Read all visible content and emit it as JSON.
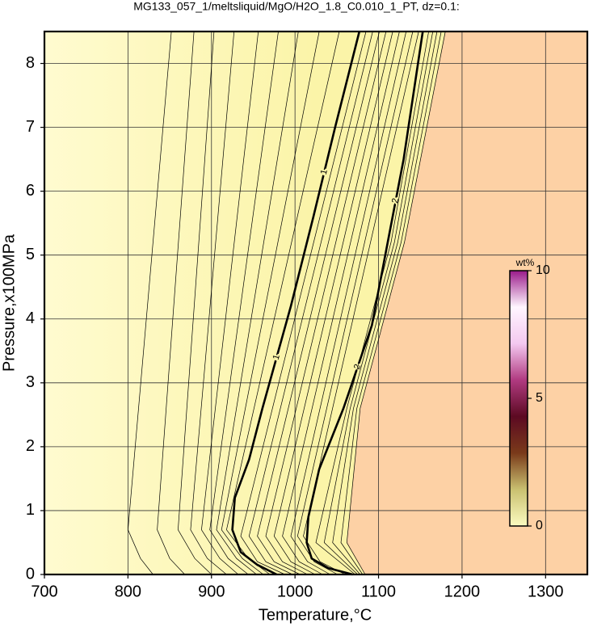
{
  "chart_data": {
    "type": "contour",
    "title": "MG133_057_1/meltsliquid/MgO/H2O_1.8_C0.010_1_PT, dz=0.1:",
    "xlabel": "Temperature,°C",
    "ylabel": "Pressure,x100MPa",
    "xlim": [
      700,
      1350
    ],
    "ylim": [
      0,
      8.5
    ],
    "xticks": [
      700,
      800,
      900,
      1000,
      1100,
      1200,
      1300
    ],
    "yticks": [
      0,
      1,
      2,
      3,
      4,
      5,
      6,
      7,
      8
    ],
    "grid": true,
    "low_color": "#fbf4a8",
    "high_color": "#fdd1a5",
    "colorbar": {
      "label": "wt%",
      "lim": [
        0,
        10
      ],
      "ticks": [
        0,
        5,
        10
      ],
      "colors": [
        "#fbfbc0",
        "#c9c070",
        "#7a3a1a",
        "#5c0a22",
        "#b03a80",
        "#f4c8f0",
        "#fff6ff",
        "#9a1a8a"
      ]
    },
    "contours": [
      {
        "level": 0.1,
        "x": [
          830,
          815,
          800,
          852
        ],
        "y": [
          0,
          0.25,
          0.7,
          8.5
        ]
      },
      {
        "level": 0.2,
        "x": [
          868,
          850,
          835,
          879
        ],
        "y": [
          0,
          0.25,
          0.7,
          8.5
        ]
      },
      {
        "level": 0.3,
        "x": [
          900,
          880,
          860,
          903
        ],
        "y": [
          0,
          0.25,
          0.7,
          8.5
        ]
      },
      {
        "level": 0.4,
        "x": [
          918,
          895,
          875,
          927
        ],
        "y": [
          0,
          0.25,
          0.7,
          8.5
        ]
      },
      {
        "level": 0.5,
        "x": [
          932,
          910,
          888,
          956
        ],
        "y": [
          0,
          0.25,
          0.7,
          8.5
        ]
      },
      {
        "level": 0.6,
        "x": [
          944,
          920,
          898,
          980
        ],
        "y": [
          0,
          0.25,
          0.7,
          8.5
        ]
      },
      {
        "level": 0.7,
        "x": [
          954,
          930,
          906,
          1004
        ],
        "y": [
          0,
          0.25,
          0.7,
          8.5
        ]
      },
      {
        "level": 0.8,
        "x": [
          962,
          937,
          912,
          1029
        ],
        "y": [
          0,
          0.25,
          0.7,
          8.5
        ]
      },
      {
        "level": 0.9,
        "x": [
          970,
          944,
          918,
          1053
        ],
        "y": [
          0,
          0.25,
          0.7,
          8.5
        ]
      },
      {
        "level": 1,
        "x": [
          978,
          955,
          935,
          925,
          928,
          945,
          961,
          995,
          1022,
          1048,
          1077
        ],
        "y": [
          0,
          0.15,
          0.35,
          0.7,
          1.2,
          1.8,
          2.6,
          4.2,
          5.6,
          7.0,
          8.5
        ]
      },
      {
        "level": 1.1,
        "x": [
          988,
          955,
          935,
          1085
        ],
        "y": [
          0,
          0.2,
          0.6,
          8.5
        ]
      },
      {
        "level": 1.2,
        "x": [
          997,
          965,
          945,
          1093
        ],
        "y": [
          0,
          0.2,
          0.6,
          8.5
        ]
      },
      {
        "level": 1.3,
        "x": [
          1006,
          975,
          955,
          1101
        ],
        "y": [
          0,
          0.2,
          0.6,
          8.5
        ]
      },
      {
        "level": 1.4,
        "x": [
          1015,
          985,
          965,
          1109
        ],
        "y": [
          0,
          0.2,
          0.6,
          8.5
        ]
      },
      {
        "level": 1.5,
        "x": [
          1024,
          995,
          975,
          1117
        ],
        "y": [
          0,
          0.2,
          0.6,
          8.5
        ]
      },
      {
        "level": 1.6,
        "x": [
          1033,
          1005,
          985,
          1125
        ],
        "y": [
          0,
          0.2,
          0.6,
          8.5
        ]
      },
      {
        "level": 1.7,
        "x": [
          1042,
          1015,
          995,
          1133
        ],
        "y": [
          0,
          0.2,
          0.6,
          8.5
        ]
      },
      {
        "level": 1.8,
        "x": [
          1051,
          1023,
          1003,
          1141
        ],
        "y": [
          0,
          0.2,
          0.6,
          8.5
        ]
      },
      {
        "level": 1.9,
        "x": [
          1060,
          1030,
          1010,
          1148
        ],
        "y": [
          0,
          0.2,
          0.6,
          8.5
        ]
      },
      {
        "level": 2,
        "x": [
          1069,
          1040,
          1020,
          1014,
          1016,
          1029,
          1058,
          1092,
          1111,
          1130,
          1153
        ],
        "y": [
          0,
          0.1,
          0.25,
          0.5,
          0.9,
          1.65,
          2.6,
          3.9,
          5.2,
          6.5,
          8.5
        ]
      },
      {
        "level": 2.1,
        "x": [
          1072,
          1025,
          1062,
          1115,
          1160
        ],
        "y": [
          0,
          0.5,
          2.6,
          5.2,
          8.5
        ]
      },
      {
        "level": 2.2,
        "x": [
          1075,
          1035,
          1066,
          1119,
          1165
        ],
        "y": [
          0,
          0.5,
          2.6,
          5.2,
          8.5
        ]
      },
      {
        "level": 2.3,
        "x": [
          1078,
          1045,
          1070,
          1123,
          1170
        ],
        "y": [
          0,
          0.5,
          2.6,
          5.2,
          8.5
        ]
      },
      {
        "level": 2.4,
        "x": [
          1081,
          1055,
          1074,
          1127,
          1175
        ],
        "y": [
          0,
          0.5,
          2.6,
          5.2,
          8.5
        ]
      },
      {
        "level": 2.5,
        "x": [
          1084,
          1062,
          1078,
          1131,
          1180
        ],
        "y": [
          0,
          0.5,
          2.6,
          5.2,
          8.5
        ]
      }
    ]
  }
}
